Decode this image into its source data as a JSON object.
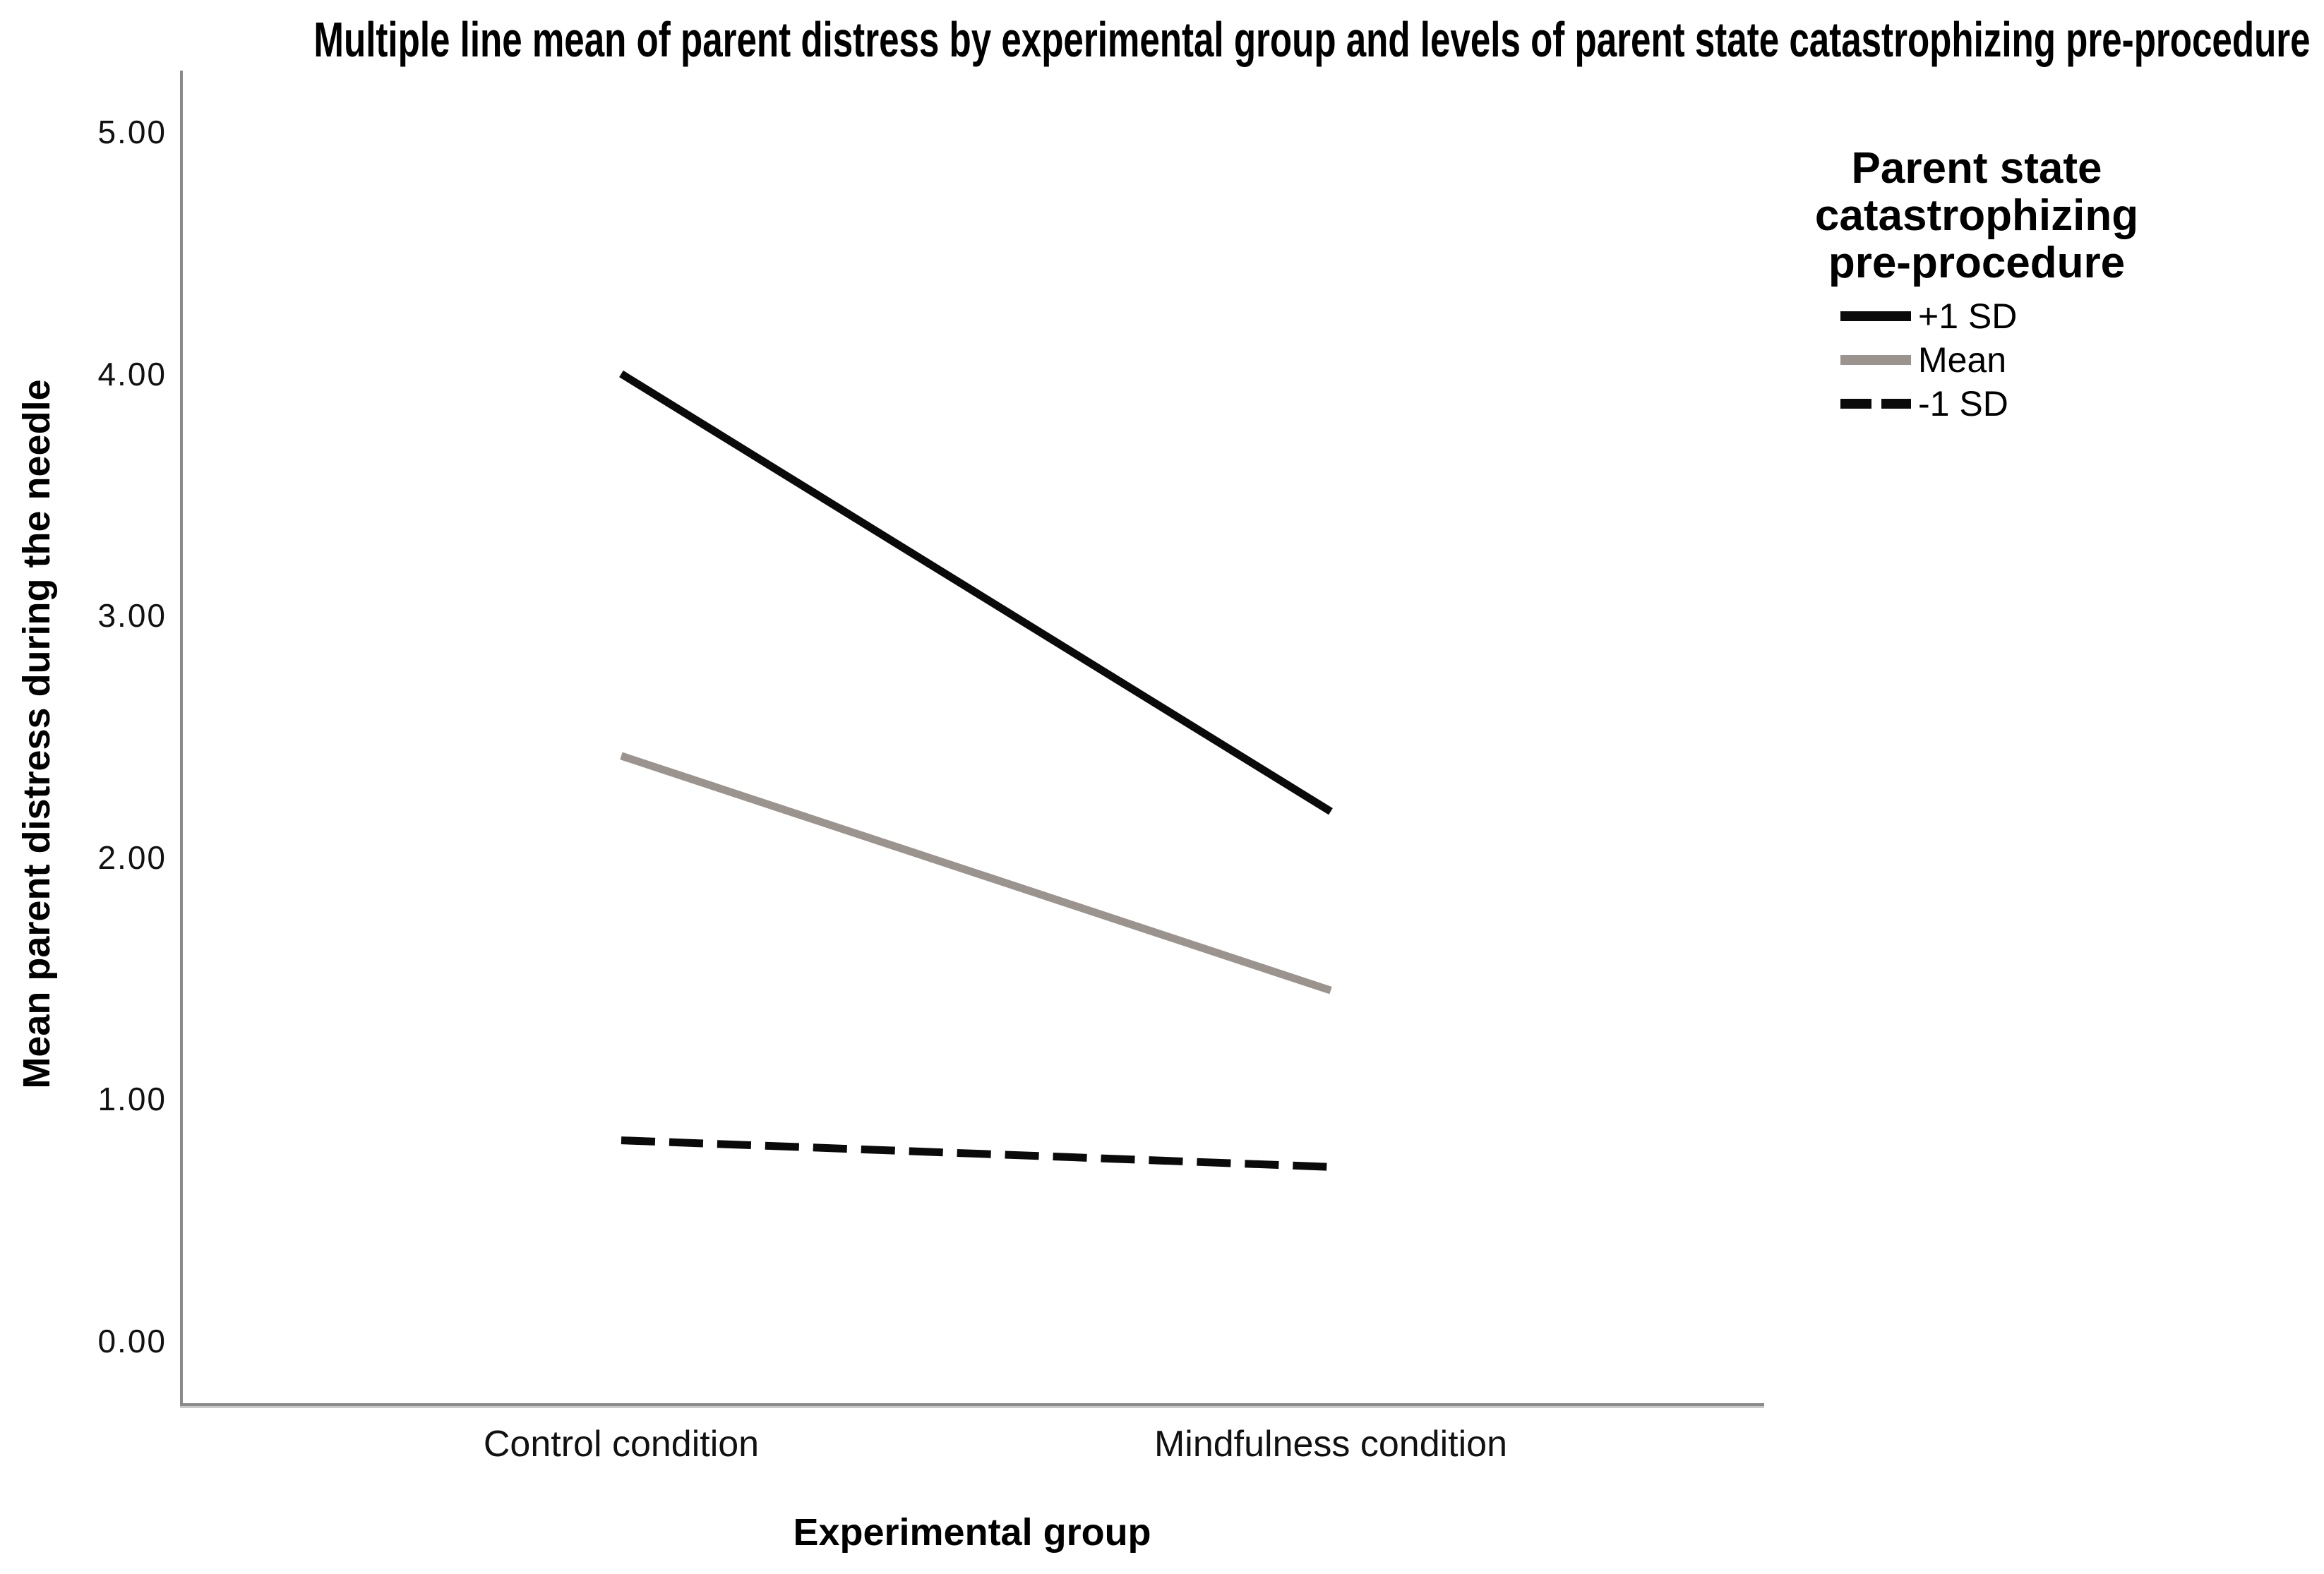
{
  "title": "Multiple line mean of parent distress by experimental group and levels of parent state catastrophizing pre-procedure",
  "chart_data": {
    "type": "line",
    "title": "Multiple line mean of parent distress by experimental group and levels of parent state catastrophizing pre-procedure",
    "xlabel": "Experimental group",
    "ylabel": "Mean parent distress during the needle",
    "categories": [
      "Control condition",
      "Mindfulness condition"
    ],
    "series": [
      {
        "id": "plus-1-sd",
        "name": "+1 SD",
        "values": [
          4.0,
          2.19
        ],
        "color": "#0a0a0a",
        "style": "solid"
      },
      {
        "id": "mean",
        "name": "Mean",
        "values": [
          2.42,
          1.45
        ],
        "color": "#9b948e",
        "style": "solid"
      },
      {
        "id": "minus-1-sd",
        "name": "-1 SD",
        "values": [
          0.83,
          0.72
        ],
        "color": "#0a0a0a",
        "style": "dashed"
      }
    ],
    "ylim": [
      0,
      5
    ],
    "yticks": [
      0,
      1,
      2,
      3,
      4,
      5
    ],
    "ytick_labels": [
      "0.00",
      "1.00",
      "2.00",
      "3.00",
      "4.00",
      "5.00"
    ],
    "grid": false,
    "legend_position": "right-top",
    "legend_title": "Parent state catastrophizing pre-procedure",
    "legend_title_lines": [
      "Parent state",
      "catastrophizing",
      "pre-procedure"
    ]
  },
  "colors": {
    "line_black": "#0a0a0a",
    "line_gray": "#9b948e",
    "axis_gray": "#8a8a8a",
    "axis_shadow": "#c9c9c9",
    "text": "#000000",
    "background": "#ffffff"
  }
}
